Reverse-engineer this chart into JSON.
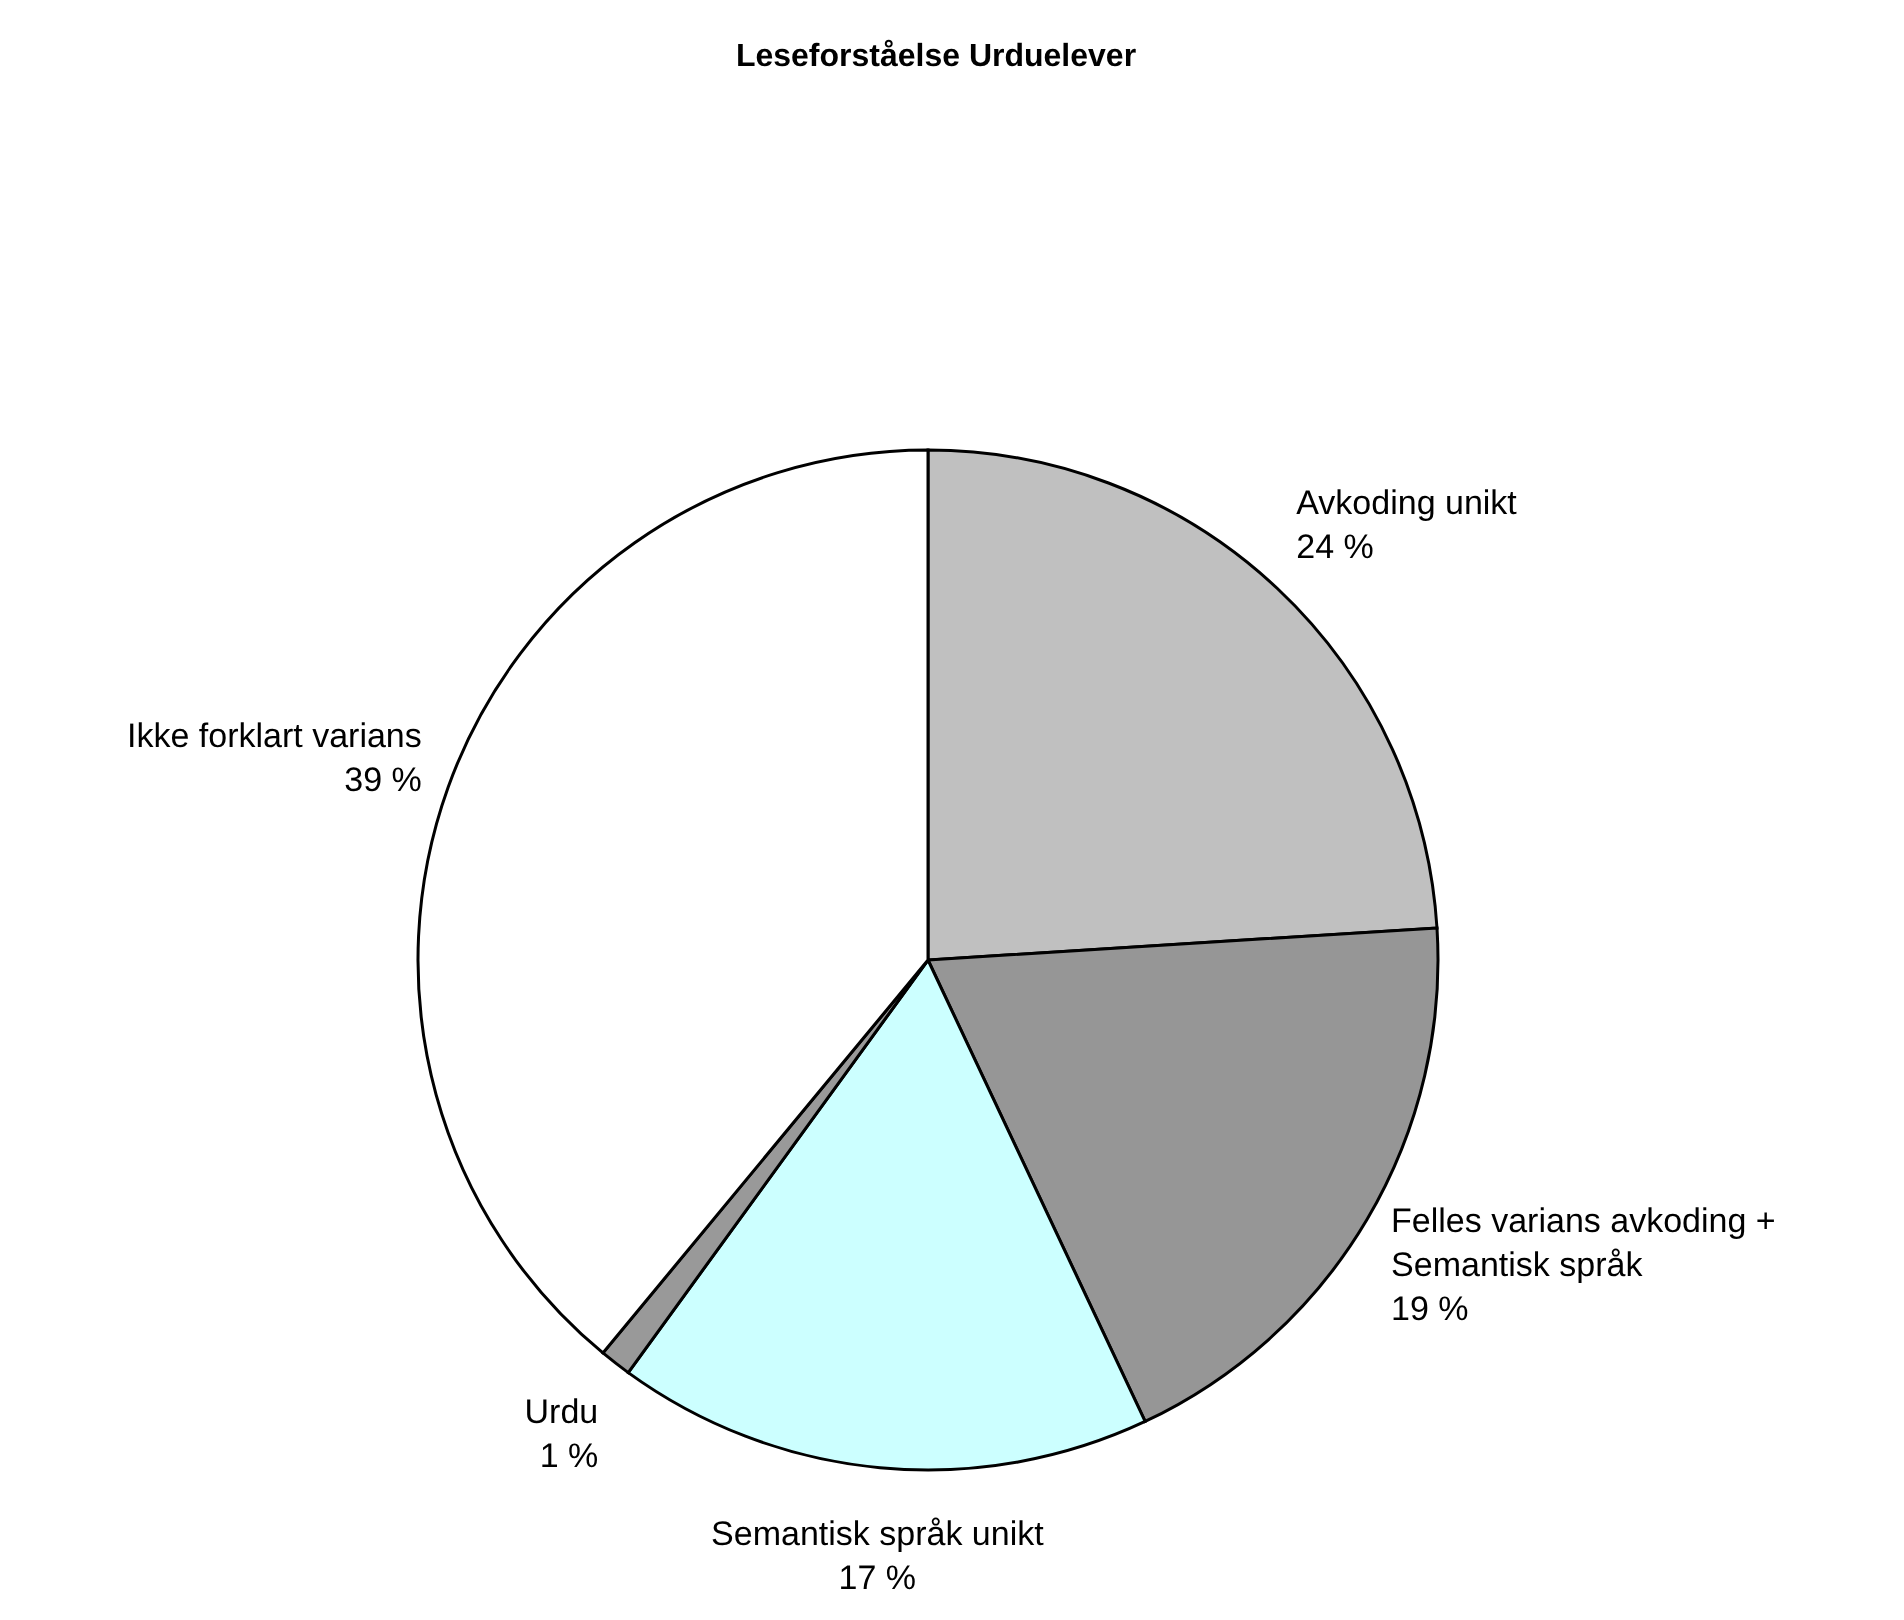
{
  "chart_data": {
    "type": "pie",
    "title": "Leseforståelse Urduelever",
    "categories": [
      "Avkoding unikt",
      "Felles varians avkoding + Semantisk språk",
      "Semantisk språk unikt",
      "Urdu",
      "Ikke forklart varians"
    ],
    "values": [
      24,
      19,
      17,
      1,
      39
    ],
    "colors": [
      "#c0c0c0",
      "#969696",
      "#ccffff",
      "#999999",
      "#ffffff"
    ],
    "value_labels": [
      "24 %",
      "19 %",
      "17 %",
      "1 %",
      "39 %"
    ]
  }
}
